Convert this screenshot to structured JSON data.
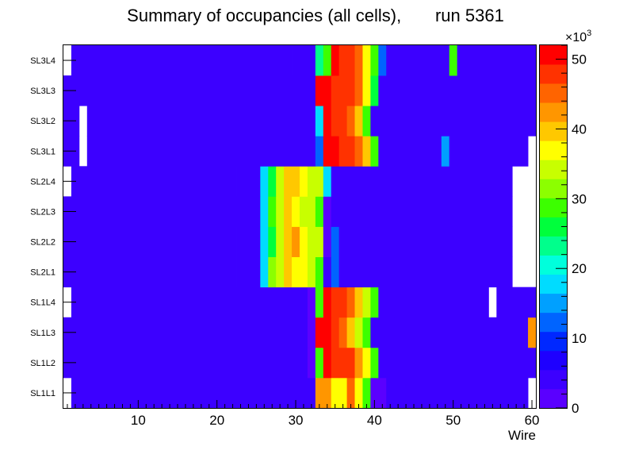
{
  "chart_data": {
    "type": "heatmap",
    "title": "Summary of occupancies (all cells),       run 5361",
    "xlabel": "Wire",
    "ylabel": "",
    "xlim": [
      0.5,
      60.5
    ],
    "x_ticks": [
      "10",
      "20",
      "30",
      "40",
      "50",
      "60"
    ],
    "rows": [
      "SL1L1",
      "SL1L2",
      "SL1L3",
      "SL1L4",
      "SL2L1",
      "SL2L2",
      "SL2L3",
      "SL2L4",
      "SL3L1",
      "SL3L2",
      "SL3L3",
      "SL3L4"
    ],
    "z_range": [
      0,
      52
    ],
    "z_unit": "×10³",
    "z_multiplier_base": "×10",
    "z_multiplier_exp": "3",
    "z_ticks": [
      "0",
      "10",
      "20",
      "30",
      "40",
      "50"
    ],
    "colormap": "ROOT rainbow (violet → red)",
    "segments": {
      "SL1L1": [
        [
          1,
          1,
          0
        ],
        [
          2,
          2,
          5
        ],
        [
          3,
          27,
          5
        ],
        [
          28,
          31,
          5
        ],
        [
          32,
          32,
          5
        ],
        [
          33,
          34,
          43
        ],
        [
          35,
          36,
          38
        ],
        [
          37,
          37,
          45
        ],
        [
          38,
          38,
          36
        ],
        [
          39,
          39,
          30
        ],
        [
          40,
          41,
          2
        ],
        [
          42,
          59,
          5
        ],
        [
          60,
          60,
          0
        ]
      ],
      "SL1L2": [
        [
          1,
          27,
          5
        ],
        [
          28,
          31,
          5
        ],
        [
          32,
          32,
          2
        ],
        [
          33,
          33,
          28
        ],
        [
          34,
          34,
          52
        ],
        [
          35,
          35,
          49
        ],
        [
          36,
          37,
          48
        ],
        [
          38,
          38,
          42
        ],
        [
          39,
          39,
          38
        ],
        [
          40,
          40,
          30
        ],
        [
          41,
          43,
          3
        ],
        [
          44,
          60,
          5
        ]
      ],
      "SL1L3": [
        [
          1,
          27,
          5
        ],
        [
          28,
          31,
          5
        ],
        [
          32,
          32,
          2
        ],
        [
          33,
          34,
          51
        ],
        [
          35,
          35,
          48
        ],
        [
          36,
          36,
          46
        ],
        [
          37,
          37,
          41
        ],
        [
          38,
          38,
          35
        ],
        [
          39,
          39,
          29
        ],
        [
          40,
          42,
          3
        ],
        [
          43,
          59,
          5
        ],
        [
          60,
          60,
          42
        ]
      ],
      "SL1L4": [
        [
          1,
          1,
          0
        ],
        [
          2,
          27,
          5
        ],
        [
          28,
          31,
          5
        ],
        [
          32,
          32,
          2
        ],
        [
          33,
          33,
          28
        ],
        [
          34,
          34,
          51
        ],
        [
          35,
          36,
          48
        ],
        [
          37,
          37,
          45
        ],
        [
          38,
          38,
          41
        ],
        [
          39,
          39,
          34
        ],
        [
          40,
          40,
          28
        ],
        [
          41,
          43,
          3
        ],
        [
          44,
          54,
          5
        ],
        [
          55,
          55,
          0
        ],
        [
          56,
          60,
          5
        ]
      ],
      "SL2L1": [
        [
          1,
          22,
          5
        ],
        [
          23,
          24,
          5
        ],
        [
          25,
          25,
          3
        ],
        [
          26,
          26,
          18
        ],
        [
          27,
          27,
          32
        ],
        [
          28,
          28,
          35
        ],
        [
          29,
          29,
          39
        ],
        [
          30,
          30,
          38
        ],
        [
          31,
          31,
          36
        ],
        [
          32,
          32,
          34
        ],
        [
          33,
          33,
          28
        ],
        [
          34,
          34,
          5
        ],
        [
          35,
          35,
          12
        ],
        [
          36,
          57,
          5
        ],
        [
          58,
          60,
          0
        ]
      ],
      "SL2L2": [
        [
          1,
          22,
          5
        ],
        [
          23,
          24,
          5
        ],
        [
          25,
          25,
          3
        ],
        [
          26,
          26,
          18
        ],
        [
          27,
          27,
          27
        ],
        [
          28,
          28,
          33
        ],
        [
          29,
          29,
          40
        ],
        [
          30,
          30,
          42
        ],
        [
          31,
          31,
          36
        ],
        [
          32,
          33,
          33
        ],
        [
          34,
          34,
          2
        ],
        [
          35,
          35,
          12
        ],
        [
          36,
          37,
          5
        ],
        [
          38,
          57,
          5
        ],
        [
          58,
          60,
          0
        ]
      ],
      "SL2L3": [
        [
          1,
          21,
          5
        ],
        [
          22,
          24,
          5
        ],
        [
          25,
          25,
          3
        ],
        [
          26,
          26,
          18
        ],
        [
          27,
          27,
          30
        ],
        [
          28,
          28,
          35
        ],
        [
          29,
          29,
          40
        ],
        [
          30,
          30,
          38
        ],
        [
          31,
          32,
          34
        ],
        [
          33,
          33,
          30
        ],
        [
          34,
          34,
          2
        ],
        [
          35,
          35,
          5
        ],
        [
          36,
          57,
          5
        ],
        [
          58,
          60,
          0
        ]
      ],
      "SL2L4": [
        [
          1,
          1,
          0
        ],
        [
          2,
          22,
          5
        ],
        [
          23,
          24,
          5
        ],
        [
          25,
          25,
          3
        ],
        [
          26,
          26,
          18
        ],
        [
          27,
          27,
          27
        ],
        [
          28,
          28,
          33
        ],
        [
          29,
          30,
          40
        ],
        [
          31,
          31,
          38
        ],
        [
          32,
          33,
          34
        ],
        [
          34,
          34,
          18
        ],
        [
          35,
          36,
          5
        ],
        [
          37,
          57,
          5
        ],
        [
          58,
          60,
          0
        ]
      ],
      "SL3L1": [
        [
          1,
          2,
          5
        ],
        [
          3,
          3,
          0
        ],
        [
          4,
          28,
          5
        ],
        [
          29,
          31,
          5
        ],
        [
          32,
          32,
          3
        ],
        [
          33,
          33,
          12
        ],
        [
          34,
          35,
          51
        ],
        [
          36,
          37,
          48
        ],
        [
          38,
          38,
          44
        ],
        [
          39,
          39,
          40
        ],
        [
          40,
          40,
          28
        ],
        [
          41,
          42,
          3
        ],
        [
          43,
          48,
          5
        ],
        [
          49,
          49,
          15
        ],
        [
          50,
          59,
          5
        ],
        [
          60,
          60,
          0
        ]
      ],
      "SL3L2": [
        [
          1,
          2,
          5
        ],
        [
          3,
          3,
          0
        ],
        [
          4,
          29,
          5
        ],
        [
          30,
          32,
          3
        ],
        [
          33,
          33,
          18
        ],
        [
          34,
          34,
          51
        ],
        [
          35,
          35,
          49
        ],
        [
          36,
          36,
          48
        ],
        [
          37,
          37,
          45
        ],
        [
          38,
          38,
          41
        ],
        [
          39,
          39,
          28
        ],
        [
          40,
          40,
          5
        ],
        [
          41,
          43,
          3
        ],
        [
          44,
          60,
          5
        ]
      ],
      "SL3L3": [
        [
          1,
          28,
          5
        ],
        [
          29,
          31,
          3
        ],
        [
          32,
          32,
          3
        ],
        [
          33,
          34,
          51
        ],
        [
          35,
          35,
          49
        ],
        [
          36,
          37,
          48
        ],
        [
          38,
          38,
          44
        ],
        [
          39,
          39,
          37
        ],
        [
          40,
          40,
          27
        ],
        [
          41,
          42,
          3
        ],
        [
          43,
          60,
          5
        ]
      ],
      "SL3L4": [
        [
          1,
          1,
          0
        ],
        [
          2,
          29,
          5
        ],
        [
          30,
          32,
          3
        ],
        [
          33,
          33,
          22
        ],
        [
          34,
          34,
          28
        ],
        [
          35,
          35,
          52
        ],
        [
          36,
          37,
          49
        ],
        [
          38,
          38,
          45
        ],
        [
          39,
          39,
          38
        ],
        [
          40,
          40,
          28
        ],
        [
          41,
          41,
          12
        ],
        [
          42,
          43,
          3
        ],
        [
          44,
          49,
          5
        ],
        [
          50,
          50,
          30
        ],
        [
          51,
          60,
          5
        ]
      ]
    }
  }
}
